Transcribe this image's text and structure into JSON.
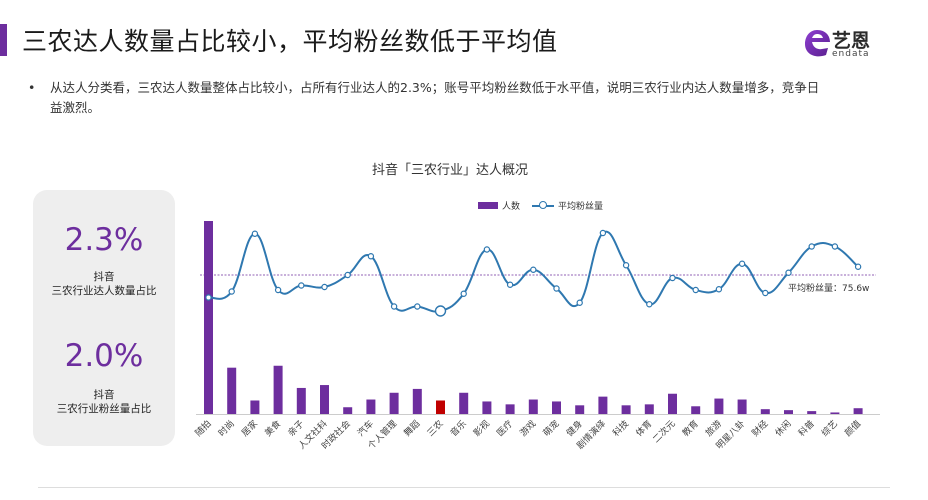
{
  "page": {
    "title": "三农达人数量占比较小，平均粉丝数低于平均值",
    "bullet": "从达人分类看，三农达人数量整体占比较小，占所有行业达人的2.3%；账号平均粉丝数低于水平值，说明三农行业内达人数量增多，竞争日益激烈。",
    "bullet_marker": "•"
  },
  "logo": {
    "zh": "艺恩",
    "en": "endata",
    "icon": "endata-e-logo-icon"
  },
  "stats": [
    {
      "value": "2.3%",
      "line1": "抖音",
      "line2": "三农行业达人数量占比"
    },
    {
      "value": "2.0%",
      "line1": "抖音",
      "line2": "三农行业粉丝量占比"
    }
  ],
  "colors": {
    "accent": "#6d2e9e",
    "line": "#2f78b0",
    "highlight": "#c00000",
    "avg_line": "#6d2e9e"
  },
  "chart_data": {
    "type": "bar+line",
    "title": "抖音「三农行业」达人概况",
    "legend": [
      "人数",
      "平均粉丝量"
    ],
    "legend_position": "top",
    "categories": [
      "随拍",
      "时尚",
      "居家",
      "美食",
      "亲子",
      "人文社科",
      "时政社会",
      "汽车",
      "个人管理",
      "舞蹈",
      "三农",
      "音乐",
      "影视",
      "医疗",
      "游戏",
      "萌宠",
      "健身",
      "剧情演绎",
      "科技",
      "体育",
      "二次元",
      "教育",
      "旅游",
      "明星八卦",
      "财经",
      "休闲",
      "科普",
      "综艺",
      "颜值"
    ],
    "series": [
      {
        "name": "人数",
        "type": "bar",
        "values": [
          100,
          24,
          7,
          25,
          13.5,
          15,
          3.5,
          7.5,
          11,
          13,
          7,
          11,
          6.5,
          5,
          7.5,
          6.5,
          4.5,
          9,
          4.5,
          5,
          10.5,
          4,
          8,
          7.5,
          2.5,
          2,
          1.5,
          0.8,
          3
        ],
        "highlight_index": 10
      },
      {
        "name": "平均粉丝量",
        "type": "line",
        "values": [
          70,
          78,
          155,
          80,
          86,
          84,
          100,
          125,
          58,
          58,
          52,
          75,
          134,
          87,
          107,
          82,
          63,
          156,
          113,
          61,
          96,
          80,
          81,
          115,
          76,
          103,
          138,
          138,
          111
        ],
        "open_marker_index": 10
      }
    ],
    "reference_line": {
      "value": 100,
      "label": "平均粉丝量：75.6w"
    }
  }
}
